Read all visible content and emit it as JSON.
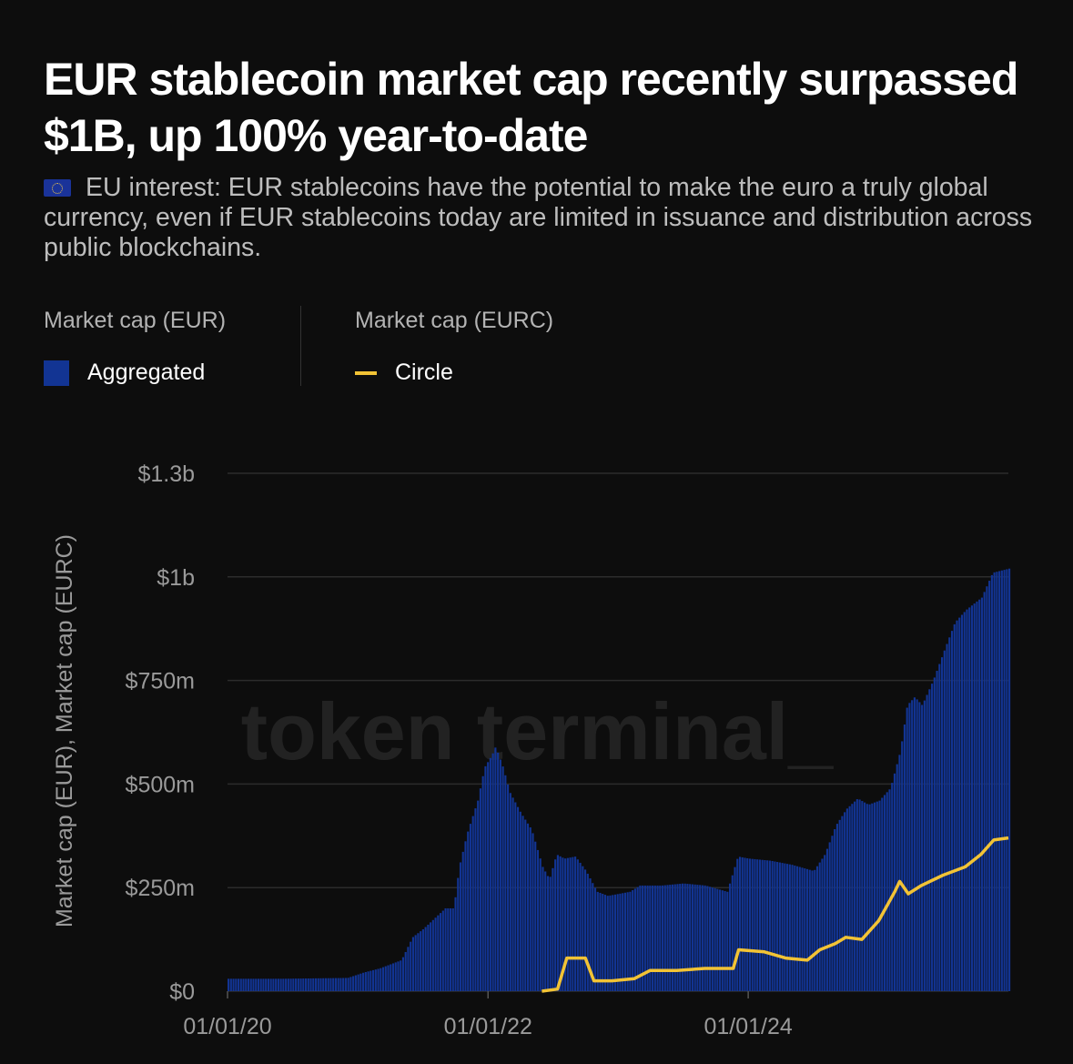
{
  "header": {
    "title": "EUR stablecoin market cap recently surpassed $1B, up 100% year-to-date",
    "subtitle": "EU interest: EUR stablecoins have the potential to make the euro a truly global currency, even if EUR stablecoins today are limited in issuance and distribution across public blockchains.",
    "flag_icon": "eu-flag-icon"
  },
  "legend": {
    "left": {
      "heading": "Market cap (EUR)",
      "label": "Aggregated",
      "color": "#123493"
    },
    "right": {
      "heading": "Market cap (EURC)",
      "label": "Circle",
      "color": "#f2c335"
    }
  },
  "watermark": "token terminal_",
  "chart_data": {
    "type": "bar",
    "title": "EUR stablecoin market cap recently surpassed $1B, up 100% year-to-date",
    "xlabel": "",
    "ylabel": "Market cap (EUR), Market cap (EURC)",
    "x_axis": {
      "type": "time",
      "range": [
        "2020-01-01",
        "2025-12-31"
      ],
      "tick_labels": [
        "01/01/20",
        "01/01/22",
        "01/01/24"
      ],
      "tick_dates": [
        "2020-01-01",
        "2022-01-01",
        "2024-01-01"
      ]
    },
    "y_axis": {
      "range": [
        0,
        1250000000
      ],
      "tick_values": [
        0,
        250000000,
        500000000,
        750000000,
        1000000000,
        1250000000
      ],
      "tick_labels": [
        "$0",
        "$250m",
        "$500m",
        "$750m",
        "$1b",
        "$1.3b"
      ]
    },
    "grid": true,
    "legend_position": "top-left",
    "series": [
      {
        "name": "Aggregated",
        "legend_group": "Market cap (EUR)",
        "render": "bars",
        "color": "#123493",
        "points": [
          [
            "2020-01-01",
            30000000
          ],
          [
            "2020-06-01",
            30000000
          ],
          [
            "2020-12-01",
            32000000
          ],
          [
            "2021-01-15",
            45000000
          ],
          [
            "2021-03-01",
            55000000
          ],
          [
            "2021-05-01",
            75000000
          ],
          [
            "2021-06-01",
            130000000
          ],
          [
            "2021-07-01",
            150000000
          ],
          [
            "2021-08-01",
            175000000
          ],
          [
            "2021-09-01",
            200000000
          ],
          [
            "2021-09-25",
            200000000
          ],
          [
            "2021-10-10",
            300000000
          ],
          [
            "2021-11-01",
            380000000
          ],
          [
            "2021-12-01",
            460000000
          ],
          [
            "2021-12-20",
            540000000
          ],
          [
            "2022-01-10",
            570000000
          ],
          [
            "2022-01-20",
            590000000
          ],
          [
            "2022-02-10",
            540000000
          ],
          [
            "2022-03-01",
            480000000
          ],
          [
            "2022-04-01",
            430000000
          ],
          [
            "2022-05-01",
            390000000
          ],
          [
            "2022-06-01",
            300000000
          ],
          [
            "2022-06-20",
            270000000
          ],
          [
            "2022-07-10",
            330000000
          ],
          [
            "2022-08-01",
            320000000
          ],
          [
            "2022-09-01",
            325000000
          ],
          [
            "2022-10-01",
            290000000
          ],
          [
            "2022-11-01",
            240000000
          ],
          [
            "2022-12-01",
            230000000
          ],
          [
            "2023-01-01",
            235000000
          ],
          [
            "2023-02-01",
            240000000
          ],
          [
            "2023-03-01",
            255000000
          ],
          [
            "2023-05-01",
            255000000
          ],
          [
            "2023-07-01",
            260000000
          ],
          [
            "2023-09-01",
            255000000
          ],
          [
            "2023-11-01",
            240000000
          ],
          [
            "2023-12-01",
            325000000
          ],
          [
            "2024-01-01",
            320000000
          ],
          [
            "2024-03-01",
            315000000
          ],
          [
            "2024-05-01",
            305000000
          ],
          [
            "2024-07-01",
            290000000
          ],
          [
            "2024-08-01",
            330000000
          ],
          [
            "2024-09-01",
            400000000
          ],
          [
            "2024-10-01",
            440000000
          ],
          [
            "2024-11-01",
            465000000
          ],
          [
            "2024-12-01",
            450000000
          ],
          [
            "2025-01-01",
            460000000
          ],
          [
            "2025-02-01",
            490000000
          ],
          [
            "2025-03-01",
            580000000
          ],
          [
            "2025-03-20",
            690000000
          ],
          [
            "2025-04-10",
            710000000
          ],
          [
            "2025-05-01",
            690000000
          ],
          [
            "2025-06-01",
            750000000
          ],
          [
            "2025-07-01",
            820000000
          ],
          [
            "2025-08-01",
            890000000
          ],
          [
            "2025-09-01",
            920000000
          ],
          [
            "2025-10-15",
            950000000
          ],
          [
            "2025-11-15",
            1010000000
          ],
          [
            "2025-12-31",
            1020000000
          ]
        ]
      },
      {
        "name": "Circle",
        "legend_group": "Market cap (EURC)",
        "render": "line",
        "color": "#f2c335",
        "points": [
          [
            "2022-06-01",
            0
          ],
          [
            "2022-07-15",
            5000000
          ],
          [
            "2022-08-10",
            80000000
          ],
          [
            "2022-10-01",
            80000000
          ],
          [
            "2022-10-25",
            25000000
          ],
          [
            "2022-12-15",
            25000000
          ],
          [
            "2023-02-15",
            30000000
          ],
          [
            "2023-04-01",
            50000000
          ],
          [
            "2023-06-15",
            50000000
          ],
          [
            "2023-09-01",
            55000000
          ],
          [
            "2023-11-20",
            55000000
          ],
          [
            "2023-12-05",
            100000000
          ],
          [
            "2024-02-15",
            95000000
          ],
          [
            "2024-04-15",
            80000000
          ],
          [
            "2024-06-15",
            75000000
          ],
          [
            "2024-07-20",
            100000000
          ],
          [
            "2024-09-01",
            115000000
          ],
          [
            "2024-10-01",
            130000000
          ],
          [
            "2024-11-15",
            125000000
          ],
          [
            "2025-01-01",
            170000000
          ],
          [
            "2025-02-15",
            240000000
          ],
          [
            "2025-03-01",
            265000000
          ],
          [
            "2025-03-25",
            235000000
          ],
          [
            "2025-05-01",
            255000000
          ],
          [
            "2025-07-01",
            280000000
          ],
          [
            "2025-09-01",
            300000000
          ],
          [
            "2025-10-15",
            330000000
          ],
          [
            "2025-11-20",
            365000000
          ],
          [
            "2025-12-31",
            370000000
          ]
        ]
      }
    ]
  }
}
